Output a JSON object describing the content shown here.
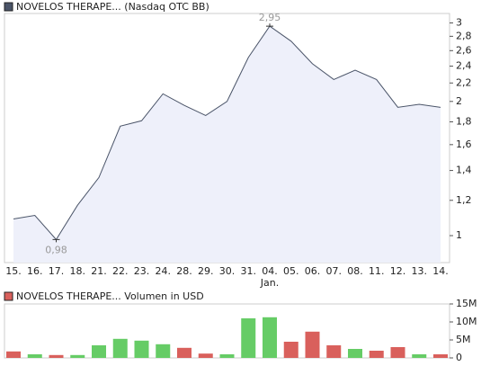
{
  "chart_data": [
    {
      "type": "line",
      "log_scale": true,
      "categories": [
        "15.",
        "16.",
        "17.",
        "18.",
        "21.",
        "22.",
        "23.",
        "24.",
        "28.",
        "29.",
        "30.",
        "31.",
        "04.",
        "05.",
        "06.",
        "07.",
        "08.",
        "11.",
        "12.",
        "13.",
        "14."
      ],
      "category_sublabels": [
        null,
        null,
        null,
        null,
        null,
        null,
        null,
        null,
        null,
        null,
        null,
        null,
        "Jan.",
        null,
        null,
        null,
        null,
        null,
        null,
        null,
        null
      ],
      "series": [
        {
          "name": "NOVELOS THERAPE... (Nasdaq OTC BB)",
          "color": "#4a5468",
          "fill": "#eef0fa",
          "values": [
            1.09,
            1.11,
            0.98,
            1.17,
            1.35,
            1.76,
            1.81,
            2.08,
            1.96,
            1.86,
            2.0,
            2.51,
            2.95,
            2.73,
            2.43,
            2.24,
            2.35,
            2.24,
            1.94,
            1.97,
            1.94
          ],
          "value_labels": [
            null,
            null,
            "0,98",
            null,
            null,
            null,
            null,
            null,
            null,
            null,
            null,
            null,
            "2,95",
            null,
            null,
            null,
            null,
            null,
            null,
            null,
            null
          ]
        }
      ],
      "ylim": [
        0.87,
        3.15
      ],
      "yticks": [
        1,
        {
          "value": 1.2,
          "label": "1,2"
        },
        {
          "value": 1.4,
          "label": "1,4"
        },
        {
          "value": 1.6,
          "label": "1,6"
        },
        {
          "value": 1.8,
          "label": "1,8"
        },
        2,
        {
          "value": 2.2,
          "label": "2,2"
        },
        {
          "value": 2.4,
          "label": "2,4"
        },
        {
          "value": 2.6,
          "label": "2,6"
        },
        {
          "value": 2.8,
          "label": "2,8"
        },
        3
      ]
    },
    {
      "type": "bar",
      "series": [
        {
          "name": "NOVELOS THERAPE... Volumen in USD",
          "color": "#d9605c",
          "values": [
            1800000,
            1000000,
            800000,
            800000,
            3500000,
            5300000,
            4800000,
            3800000,
            2800000,
            1200000,
            1000000,
            11000000,
            11300000,
            4500000,
            7300000,
            3500000,
            2500000,
            2000000,
            3000000,
            1000000,
            1000000
          ],
          "colors": [
            "#d9605c",
            "#66cc66",
            "#d9605c",
            "#66cc66",
            "#66cc66",
            "#66cc66",
            "#66cc66",
            "#66cc66",
            "#d9605c",
            "#d9605c",
            "#66cc66",
            "#66cc66",
            "#66cc66",
            "#d9605c",
            "#d9605c",
            "#d9605c",
            "#66cc66",
            "#d9605c",
            "#d9605c",
            "#66cc66",
            "#d9605c"
          ]
        }
      ],
      "ylim": [
        0,
        15000000
      ],
      "yticks": [
        {
          "value": 0,
          "label": "0"
        },
        {
          "value": 5000000,
          "label": "5M"
        },
        {
          "value": 10000000,
          "label": "10M"
        },
        {
          "value": 15000000,
          "label": "15M"
        }
      ]
    }
  ]
}
